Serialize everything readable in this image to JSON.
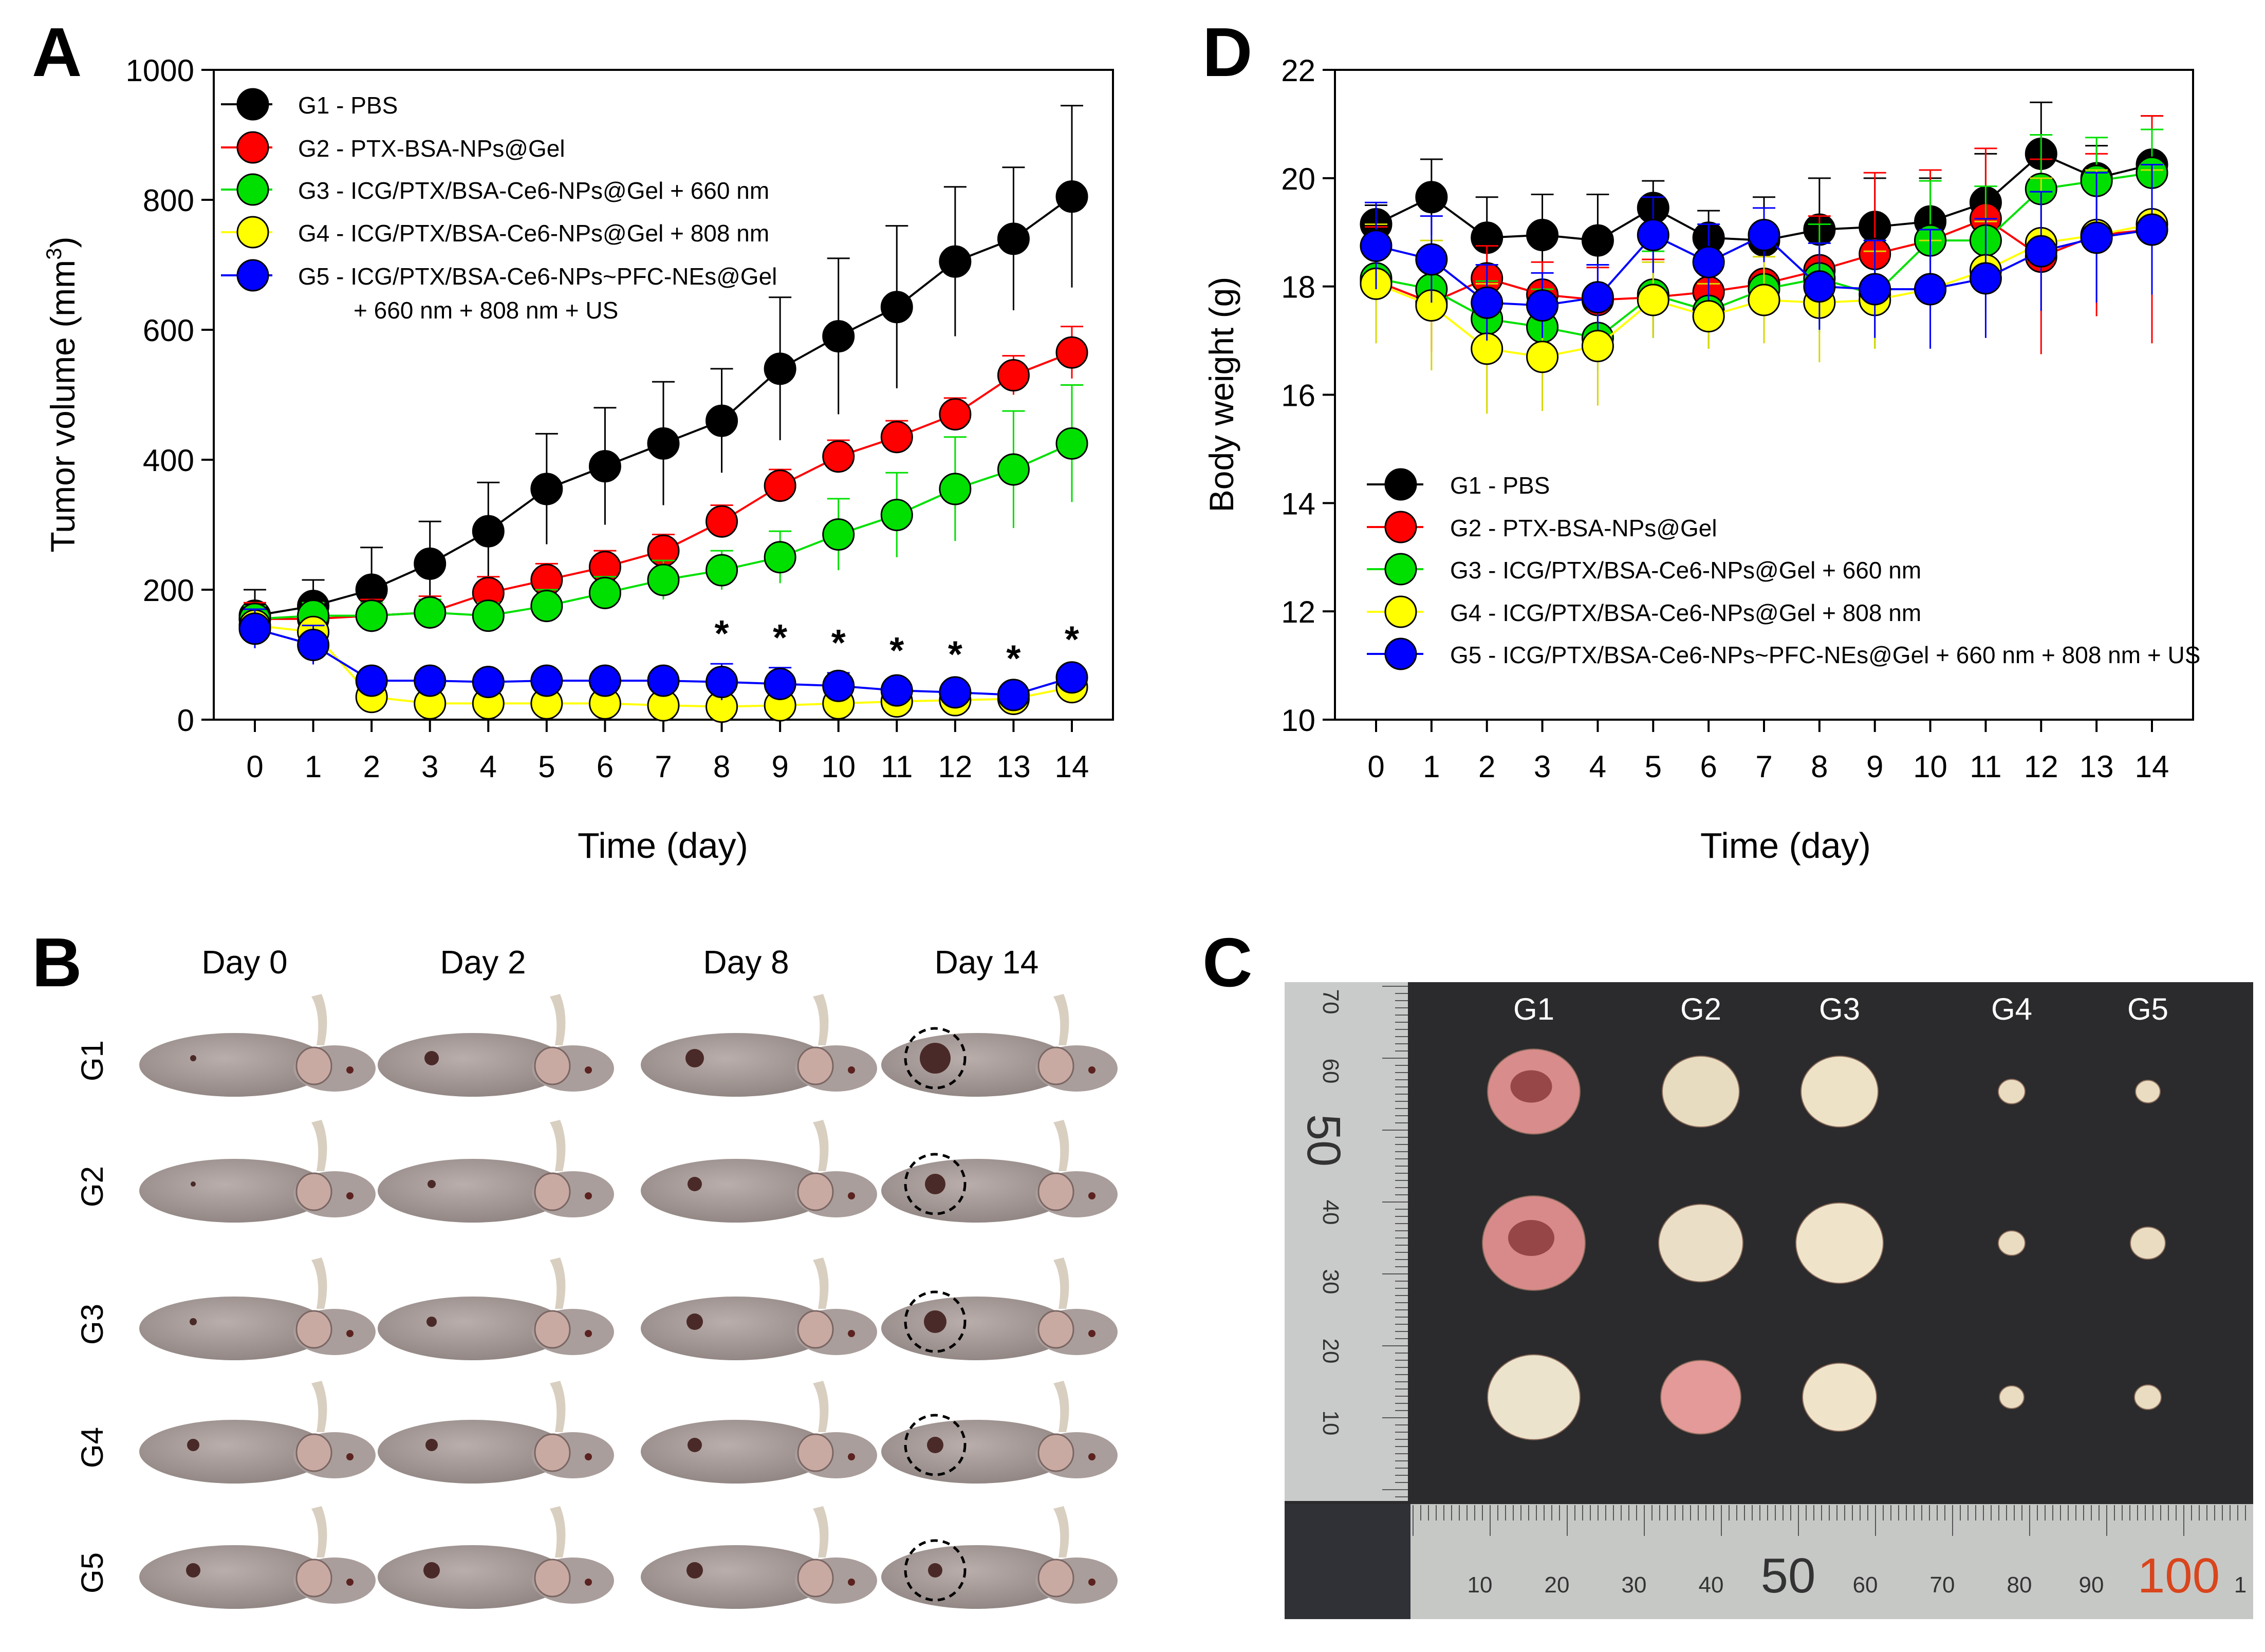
{
  "panel_labels": {
    "a": "A",
    "b": "B",
    "c": "C",
    "d": "D"
  },
  "colors": {
    "g1": "#000000",
    "g2": "#ff0000",
    "g3": "#00e000",
    "g4": "#ffff00",
    "g5": "#0000ff",
    "skin": "#a59a98",
    "skin_shadow": "#8c807d",
    "tumor": "#4a2a28",
    "board": "#2b2b2d",
    "ruler": "#c8cac9",
    "tissue": "#eadfc6",
    "tissue_red": "#d98c8c"
  },
  "chart_data": [
    {
      "type": "line",
      "panel": "A",
      "xlabel": "Time (day)",
      "ylabel_prefix": "Tumor volume (mm",
      "ylabel_sup": "3",
      "ylabel_suffix": ")",
      "x": [
        0,
        1,
        2,
        3,
        4,
        5,
        6,
        7,
        8,
        9,
        10,
        11,
        12,
        13,
        14
      ],
      "ylim": [
        0,
        1000
      ],
      "yticks": [
        0,
        200,
        400,
        600,
        800,
        1000
      ],
      "legend_position": "top-left",
      "significance_days": [
        8,
        9,
        10,
        11,
        12,
        13,
        14
      ],
      "significance_mark": "*",
      "series": [
        {
          "key": "g1",
          "name": "G1 - PBS",
          "values": [
            160,
            175,
            200,
            240,
            290,
            355,
            390,
            425,
            460,
            540,
            590,
            635,
            705,
            740,
            805
          ],
          "err": [
            40,
            40,
            65,
            65,
            75,
            85,
            90,
            95,
            80,
            110,
            120,
            125,
            115,
            110,
            140
          ]
        },
        {
          "key": "g2",
          "name": "G2 - PTX-BSA-NPs@Gel",
          "values": [
            155,
            155,
            160,
            165,
            195,
            215,
            235,
            260,
            305,
            360,
            405,
            435,
            470,
            530,
            565
          ],
          "err": [
            25,
            25,
            25,
            25,
            25,
            25,
            25,
            25,
            25,
            25,
            25,
            25,
            25,
            30,
            40
          ]
        },
        {
          "key": "g3",
          "name": "G3 - ICG/PTX/BSA-Ce6-NPs@Gel + 660 nm",
          "values": [
            155,
            160,
            160,
            165,
            160,
            175,
            195,
            215,
            230,
            250,
            285,
            315,
            355,
            385,
            425
          ],
          "err": [
            20,
            20,
            20,
            20,
            20,
            25,
            25,
            30,
            30,
            40,
            55,
            65,
            80,
            90,
            90
          ]
        },
        {
          "key": "g4",
          "name": "G4 - ICG/PTX/BSA-Ce6-NPs@Gel + 808 nm",
          "values": [
            145,
            135,
            35,
            25,
            25,
            25,
            25,
            22,
            20,
            22,
            25,
            28,
            30,
            32,
            50
          ],
          "err": [
            15,
            15,
            10,
            10,
            10,
            10,
            10,
            10,
            10,
            10,
            10,
            10,
            10,
            10,
            10
          ]
        },
        {
          "key": "g5",
          "name": "G5 - ICG/PTX/BSA-Ce6-NPs~PFC-NEs@Gel",
          "name_line2": "+ 660 nm + 808 nm + US",
          "values": [
            140,
            115,
            60,
            60,
            58,
            60,
            60,
            60,
            58,
            55,
            52,
            45,
            42,
            38,
            65
          ],
          "err": [
            30,
            30,
            15,
            15,
            12,
            12,
            12,
            15,
            28,
            25,
            20,
            15,
            12,
            10,
            12
          ]
        }
      ]
    },
    {
      "type": "line",
      "panel": "D",
      "xlabel": "Time (day)",
      "ylabel": "Body weight (g)",
      "x": [
        0,
        1,
        2,
        3,
        4,
        5,
        6,
        7,
        8,
        9,
        10,
        11,
        12,
        13,
        14
      ],
      "ylim": [
        10,
        22
      ],
      "yticks": [
        10,
        12,
        14,
        16,
        18,
        20,
        22
      ],
      "legend_position": "bottom-left",
      "series": [
        {
          "key": "g1",
          "name": "G1 - PBS",
          "values": [
            19.15,
            19.65,
            18.9,
            18.95,
            18.85,
            19.45,
            18.9,
            18.85,
            19.05,
            19.1,
            19.2,
            19.55,
            20.45,
            20.0,
            20.25
          ],
          "err": [
            0.35,
            0.7,
            0.75,
            0.75,
            0.85,
            0.5,
            0.5,
            0.8,
            0.95,
            0.9,
            0.8,
            0.9,
            0.95,
            0.6,
            0.9
          ]
        },
        {
          "key": "g2",
          "name": "G2 - PTX-BSA-NPs@Gel",
          "values": [
            18.1,
            17.7,
            18.15,
            17.85,
            17.75,
            17.8,
            17.9,
            18.05,
            18.3,
            18.6,
            18.85,
            19.25,
            18.55,
            18.95,
            19.05
          ],
          "err": [
            1.0,
            0.9,
            0.6,
            0.6,
            0.6,
            0.7,
            0.6,
            1.0,
            1.0,
            1.5,
            1.3,
            1.3,
            1.8,
            1.5,
            2.1
          ]
        },
        {
          "key": "g3",
          "name": "G3 - ICG/PTX/BSA-Ce6-NPs@Gel + 660 nm",
          "values": [
            18.15,
            17.95,
            17.4,
            17.25,
            17.05,
            17.85,
            17.55,
            17.95,
            18.15,
            17.85,
            18.85,
            18.85,
            19.8,
            19.95,
            20.1
          ],
          "err": [
            0.6,
            0.5,
            0.7,
            0.7,
            0.6,
            0.8,
            0.7,
            0.8,
            1.0,
            1.0,
            1.1,
            1.0,
            1.0,
            0.8,
            0.8
          ]
        },
        {
          "key": "g4",
          "name": "G4 - ICG/PTX/BSA-Ce6-NPs@Gel + 808 nm",
          "values": [
            18.05,
            17.65,
            16.85,
            16.7,
            16.9,
            17.75,
            17.45,
            17.75,
            17.7,
            17.75,
            17.95,
            18.3,
            18.8,
            18.95,
            19.15
          ],
          "err": [
            1.1,
            1.2,
            1.2,
            1.0,
            1.1,
            0.7,
            0.6,
            0.8,
            1.1,
            0.9,
            0.9,
            0.9,
            1.2,
            1.2,
            1.0
          ]
        },
        {
          "key": "g5",
          "name": "G5 - ICG/PTX/BSA-Ce6-NPs~PFC-NEs@Gel + 660 nm + 808 nm + US",
          "values": [
            18.75,
            18.5,
            17.7,
            17.65,
            17.8,
            18.95,
            18.45,
            18.95,
            18.0,
            17.95,
            17.95,
            18.15,
            18.65,
            18.9,
            19.05
          ],
          "err": [
            0.8,
            0.8,
            0.7,
            0.6,
            0.6,
            0.7,
            0.7,
            0.5,
            0.8,
            0.9,
            1.1,
            1.1,
            1.1,
            1.2,
            1.2
          ]
        }
      ]
    }
  ],
  "panel_b": {
    "day_labels": [
      "Day 0",
      "Day 2",
      "Day 8",
      "Day 14"
    ],
    "group_labels": [
      "G1",
      "G2",
      "G3",
      "G4",
      "G5"
    ]
  },
  "panel_c": {
    "group_labels": [
      "G1",
      "G2",
      "G3",
      "G4",
      "G5"
    ],
    "ruler_left_labels": [
      "70",
      "60",
      "50",
      "40",
      "30",
      "20",
      "10"
    ],
    "ruler_bottom_labels": [
      "10",
      "20",
      "30",
      "40",
      "50",
      "60",
      "70",
      "80",
      "90",
      "100",
      "1"
    ]
  }
}
